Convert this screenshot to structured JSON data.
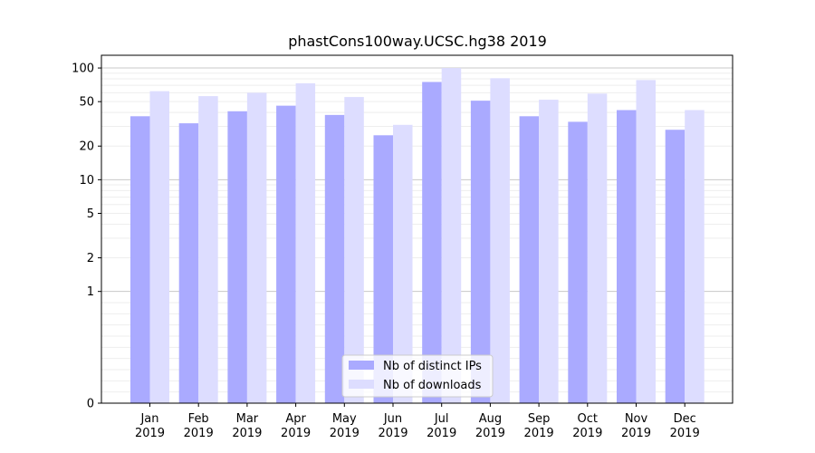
{
  "chart_data": {
    "type": "bar",
    "title": "phastCons100way.UCSC.hg38 2019",
    "xlabel": "",
    "ylabel": "",
    "yscale": "symlog",
    "ylim": [
      0,
      130
    ],
    "yticks": [
      "0",
      "1",
      "2",
      "5",
      "10",
      "20",
      "50",
      "100"
    ],
    "categories": [
      "Jan",
      "Feb",
      "Mar",
      "Apr",
      "May",
      "Jun",
      "Jul",
      "Aug",
      "Sep",
      "Oct",
      "Nov",
      "Dec"
    ],
    "year_label": "2019",
    "grid": "horizontal",
    "legend_position": "lower center",
    "series": [
      {
        "name": "Nb of distinct IPs",
        "color": "#aaaaff",
        "values": [
          37,
          32,
          41,
          46,
          38,
          25,
          75,
          51,
          37,
          33,
          42,
          28
        ]
      },
      {
        "name": "Nb of downloads",
        "color": "#ddddff",
        "values": [
          62,
          56,
          60,
          73,
          55,
          31,
          100,
          81,
          52,
          59,
          78,
          42
        ]
      }
    ]
  }
}
